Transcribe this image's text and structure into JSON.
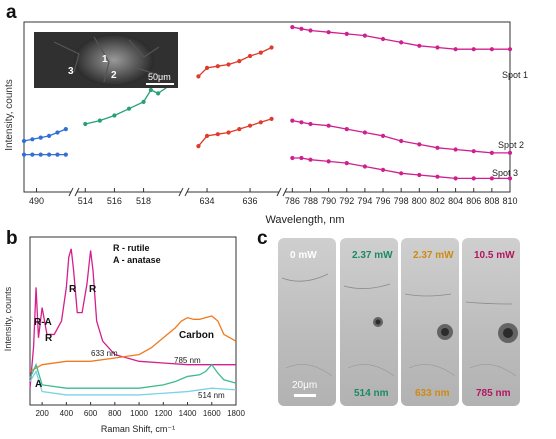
{
  "panel_a": {
    "letter": "a",
    "inset": {
      "labels": [
        "1",
        "2",
        "3"
      ],
      "scale_bar": "50μm"
    },
    "chart_data": {
      "type": "line",
      "xlabel": "Wavelength, nm",
      "ylabel": "Intensity, counts",
      "x_ticks": [
        "490",
        "514",
        "516",
        "518",
        "634",
        "636",
        "786",
        "788",
        "790",
        "792",
        "794",
        "796",
        "798",
        "800",
        "802",
        "804",
        "806",
        "808",
        "810"
      ],
      "segments": [
        {
          "name": "blue",
          "xlim": [
            487,
            498
          ],
          "color": "#2f6fd6",
          "series": [
            {
              "x": [
                487,
                489,
                491,
                493,
                495,
                497
              ],
              "y": [
                0.3,
                0.31,
                0.32,
                0.33,
                0.35,
                0.37
              ]
            },
            {
              "x": [
                487,
                489,
                491,
                493,
                495,
                497
              ],
              "y": [
                0.22,
                0.22,
                0.22,
                0.22,
                0.22,
                0.22
              ]
            }
          ]
        },
        {
          "name": "green",
          "xlim": [
            513.5,
            520.5
          ],
          "color": "#26a07a",
          "series": [
            {
              "x": [
                514,
                515,
                516,
                517,
                518,
                518.5,
                519,
                520
              ],
              "y": [
                0.4,
                0.42,
                0.45,
                0.49,
                0.53,
                0.6,
                0.58,
                0.64
              ]
            }
          ]
        },
        {
          "name": "red",
          "xlim": [
            633.3,
            637.3
          ],
          "color": "#e03a2a",
          "series": [
            {
              "x": [
                633.6,
                634,
                634.5,
                635,
                635.5,
                636,
                636.5,
                637
              ],
              "y": [
                0.68,
                0.73,
                0.74,
                0.75,
                0.77,
                0.8,
                0.82,
                0.85
              ]
            },
            {
              "x": [
                633.6,
                634,
                634.5,
                635,
                635.5,
                636,
                636.5,
                637
              ],
              "y": [
                0.27,
                0.33,
                0.34,
                0.35,
                0.37,
                0.39,
                0.41,
                0.43
              ]
            }
          ]
        },
        {
          "name": "magenta",
          "xlim": [
            785.3,
            810
          ],
          "color": "#d0208f",
          "series": [
            {
              "name": "Spot 1",
              "x": [
                786,
                787,
                788,
                790,
                792,
                794,
                796,
                798,
                800,
                802,
                804,
                806,
                808,
                810
              ],
              "y": [
                0.97,
                0.96,
                0.95,
                0.94,
                0.93,
                0.92,
                0.9,
                0.88,
                0.86,
                0.85,
                0.84,
                0.84,
                0.84,
                0.84
              ]
            },
            {
              "name": "Spot 2",
              "x": [
                786,
                787,
                788,
                790,
                792,
                794,
                796,
                798,
                800,
                802,
                804,
                806,
                808,
                810
              ],
              "y": [
                0.42,
                0.41,
                0.4,
                0.39,
                0.37,
                0.35,
                0.33,
                0.3,
                0.28,
                0.26,
                0.25,
                0.24,
                0.23,
                0.23
              ]
            },
            {
              "name": "Spot 3",
              "x": [
                786,
                787,
                788,
                790,
                792,
                794,
                796,
                798,
                800,
                802,
                804,
                806,
                808,
                810
              ],
              "y": [
                0.2,
                0.2,
                0.19,
                0.18,
                0.17,
                0.15,
                0.13,
                0.11,
                0.1,
                0.09,
                0.08,
                0.08,
                0.08,
                0.08
              ]
            }
          ]
        }
      ],
      "annotations": [
        "Spot 1",
        "Spot 2",
        "Spot 3"
      ]
    }
  },
  "panel_b": {
    "letter": "b",
    "chart_data": {
      "type": "line",
      "xlabel": "Raman Shift, cm⁻¹",
      "ylabel": "Intensity, counts",
      "xlim": [
        100,
        1800
      ],
      "x_ticks": [
        200,
        400,
        600,
        800,
        1000,
        1200,
        1400,
        1600,
        1800
      ],
      "legend_text": [
        "R - rutile",
        "A - anatase"
      ],
      "peak_labels": [
        "R-A",
        "R",
        "R",
        "R",
        "A",
        "Carbon"
      ],
      "series": [
        {
          "name": "633 nm",
          "color": "#d41f8c",
          "x": [
            100,
            130,
            150,
            170,
            200,
            240,
            300,
            360,
            400,
            420,
            440,
            460,
            490,
            530,
            570,
            600,
            620,
            650,
            700,
            800,
            1000,
            1200,
            1400,
            1600,
            1800
          ],
          "y": [
            0.1,
            0.35,
            0.7,
            0.4,
            0.58,
            0.42,
            0.42,
            0.5,
            0.7,
            0.88,
            0.93,
            0.8,
            0.55,
            0.55,
            0.72,
            0.92,
            0.8,
            0.5,
            0.38,
            0.3,
            0.26,
            0.25,
            0.24,
            0.24,
            0.24
          ]
        },
        {
          "name": "785 nm",
          "color": "#ef7a1f",
          "x": [
            100,
            200,
            400,
            600,
            800,
            1000,
            1100,
            1200,
            1300,
            1350,
            1400,
            1450,
            1500,
            1550,
            1600,
            1650,
            1700,
            1800
          ],
          "y": [
            0.2,
            0.24,
            0.26,
            0.26,
            0.28,
            0.3,
            0.34,
            0.4,
            0.46,
            0.5,
            0.52,
            0.51,
            0.51,
            0.52,
            0.53,
            0.5,
            0.42,
            0.38
          ]
        },
        {
          "name": "514 nm",
          "color": "#3dbb8f",
          "x": [
            100,
            150,
            200,
            400,
            600,
            800,
            1000,
            1200,
            1300,
            1400,
            1500,
            1550,
            1600,
            1650,
            1700,
            1800
          ],
          "y": [
            0.16,
            0.24,
            0.12,
            0.1,
            0.1,
            0.1,
            0.1,
            0.12,
            0.14,
            0.17,
            0.18,
            0.2,
            0.24,
            0.19,
            0.15,
            0.13
          ]
        },
        {
          "name": "",
          "color": "#7bd3e6",
          "x": [
            100,
            150,
            200,
            400,
            600,
            800,
            1000,
            1200,
            1400,
            1600,
            1800
          ],
          "y": [
            0.14,
            0.2,
            0.08,
            0.06,
            0.06,
            0.06,
            0.06,
            0.07,
            0.08,
            0.1,
            0.09
          ]
        }
      ]
    }
  },
  "panel_c": {
    "letter": "c",
    "tiles": [
      {
        "power": "0 mW",
        "wavelength": "",
        "power_color": "#ffffff",
        "wavelength_color": "#ffffff",
        "scale_bar": "20μm"
      },
      {
        "power": "2.37 mW",
        "wavelength": "514 nm",
        "power_color": "#1a8a65",
        "wavelength_color": "#1a8a65",
        "scale_bar": ""
      },
      {
        "power": "2.37 mW",
        "wavelength": "633 nm",
        "power_color": "#d08a10",
        "wavelength_color": "#d08a10",
        "scale_bar": ""
      },
      {
        "power": "10.5 mW",
        "wavelength": "785 nm",
        "power_color": "#b4165f",
        "wavelength_color": "#b4165f",
        "scale_bar": ""
      }
    ]
  }
}
